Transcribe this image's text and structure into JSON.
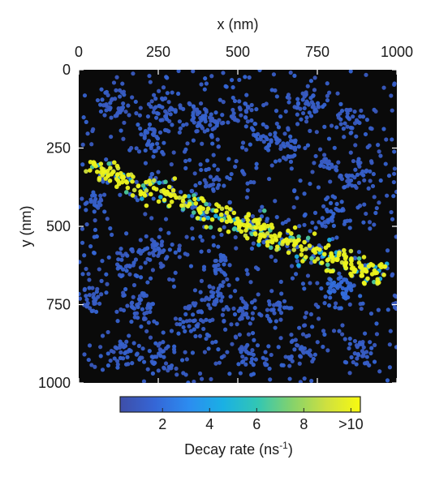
{
  "chart_data": {
    "type": "scatter",
    "xlabel": "x (nm)",
    "ylabel": "y (nm)",
    "xlim": [
      0,
      1000
    ],
    "ylim": [
      0,
      1000
    ],
    "y_reversed": true,
    "x_axis_position": "top",
    "x_ticks": [
      0,
      250,
      500,
      750,
      1000
    ],
    "y_ticks": [
      0,
      250,
      500,
      750,
      1000
    ],
    "background": "#0a0a0a",
    "colorbar": {
      "label_main": "Decay rate (ns",
      "label_sup": "-1",
      "label_end": ")",
      "ticks": [
        {
          "value": 2,
          "label": "2"
        },
        {
          "value": 4,
          "label": "4"
        },
        {
          "value": 6,
          "label": "6"
        },
        {
          "value": 8,
          "label": "8"
        },
        {
          "value": 10,
          "label": ">10"
        }
      ],
      "range": [
        0.2,
        10.4
      ],
      "colormap": [
        "#3e4ea8",
        "#3566d6",
        "#2c8cf0",
        "#1ab0e4",
        "#32c6b4",
        "#84d26c",
        "#cee040",
        "#f8fa10"
      ]
    },
    "background_points_color": "#3355a6",
    "clusters": [
      {
        "x": 110,
        "y": 110,
        "n": 40,
        "r": 28,
        "rate": 1.2
      },
      {
        "x": 270,
        "y": 130,
        "n": 35,
        "r": 30,
        "rate": 1.2
      },
      {
        "x": 240,
        "y": 215,
        "n": 35,
        "r": 25,
        "rate": 1.3
      },
      {
        "x": 375,
        "y": 145,
        "n": 30,
        "r": 25,
        "rate": 1.2
      },
      {
        "x": 430,
        "y": 175,
        "n": 30,
        "r": 25,
        "rate": 1.2
      },
      {
        "x": 520,
        "y": 140,
        "n": 25,
        "r": 22,
        "rate": 1.2
      },
      {
        "x": 715,
        "y": 110,
        "n": 40,
        "r": 28,
        "rate": 1.2
      },
      {
        "x": 845,
        "y": 165,
        "n": 30,
        "r": 22,
        "rate": 1.2
      },
      {
        "x": 595,
        "y": 205,
        "n": 25,
        "r": 22,
        "rate": 1.3
      },
      {
        "x": 660,
        "y": 245,
        "n": 25,
        "r": 25,
        "rate": 1.2
      },
      {
        "x": 880,
        "y": 335,
        "n": 30,
        "r": 28,
        "rate": 1.2
      },
      {
        "x": 780,
        "y": 300,
        "n": 25,
        "r": 22,
        "rate": 1.2
      },
      {
        "x": 790,
        "y": 460,
        "n": 35,
        "r": 30,
        "rate": 1.4
      },
      {
        "x": 820,
        "y": 700,
        "n": 40,
        "r": 25,
        "rate": 1.8
      },
      {
        "x": 170,
        "y": 600,
        "n": 25,
        "r": 25,
        "rate": 1.2
      },
      {
        "x": 245,
        "y": 570,
        "n": 25,
        "r": 22,
        "rate": 1.2
      },
      {
        "x": 440,
        "y": 615,
        "n": 25,
        "r": 22,
        "rate": 1.3
      },
      {
        "x": 420,
        "y": 710,
        "n": 25,
        "r": 25,
        "rate": 1.2
      },
      {
        "x": 200,
        "y": 760,
        "n": 35,
        "r": 30,
        "rate": 1.2
      },
      {
        "x": 40,
        "y": 735,
        "n": 30,
        "r": 25,
        "rate": 1.2
      },
      {
        "x": 365,
        "y": 805,
        "n": 35,
        "r": 30,
        "rate": 1.2
      },
      {
        "x": 520,
        "y": 775,
        "n": 30,
        "r": 25,
        "rate": 1.2
      },
      {
        "x": 625,
        "y": 755,
        "n": 25,
        "r": 22,
        "rate": 1.2
      },
      {
        "x": 250,
        "y": 925,
        "n": 30,
        "r": 28,
        "rate": 1.2
      },
      {
        "x": 140,
        "y": 900,
        "n": 25,
        "r": 25,
        "rate": 1.2
      },
      {
        "x": 545,
        "y": 905,
        "n": 30,
        "r": 28,
        "rate": 1.2
      },
      {
        "x": 700,
        "y": 905,
        "n": 30,
        "r": 25,
        "rate": 1.2
      },
      {
        "x": 880,
        "y": 895,
        "n": 25,
        "r": 22,
        "rate": 1.2
      },
      {
        "x": 60,
        "y": 420,
        "n": 20,
        "r": 20,
        "rate": 1.3
      },
      {
        "x": 425,
        "y": 355,
        "n": 20,
        "r": 22,
        "rate": 1.2
      }
    ],
    "band": {
      "start": [
        30,
        305
      ],
      "end": [
        960,
        665
      ],
      "n": 420,
      "width": 38,
      "rate_mix": [
        {
          "rate": 10.0,
          "weight": 0.58
        },
        {
          "rate": 9.0,
          "weight": 0.12
        },
        {
          "rate": 6.5,
          "weight": 0.1
        },
        {
          "rate": 4.5,
          "weight": 0.12
        },
        {
          "rate": 1.5,
          "weight": 0.08
        }
      ]
    },
    "uniform_points": 650
  }
}
